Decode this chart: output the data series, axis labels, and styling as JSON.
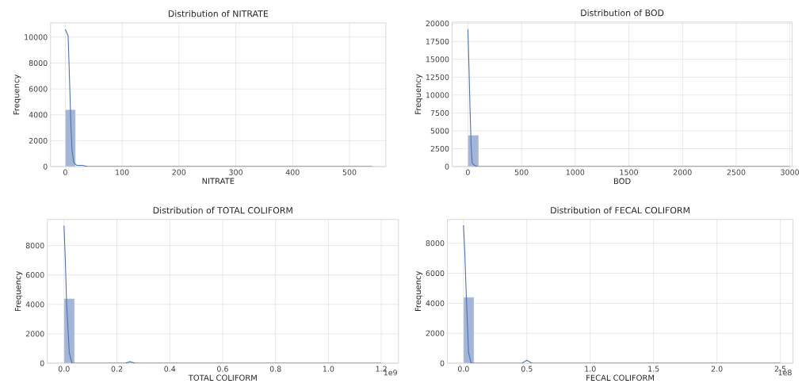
{
  "chart_data": [
    {
      "type": "histogram",
      "title": "Distribution of NITRATE",
      "xlabel": "NITRATE",
      "ylabel": "Frequency",
      "xlim": [
        -26,
        564
      ],
      "ylim": [
        0,
        11100
      ],
      "xticks": [
        0,
        100,
        200,
        300,
        400,
        500
      ],
      "yticks": [
        0,
        2000,
        4000,
        6000,
        8000,
        10000
      ],
      "grid": true,
      "series": [
        {
          "type": "histogram",
          "color": "#a4b6d8",
          "bins": [
            0,
            18,
            36,
            54,
            72,
            90,
            108,
            126,
            144,
            162,
            180,
            198,
            216,
            234,
            252,
            270,
            288,
            306,
            324,
            342,
            360,
            378,
            396,
            414,
            432,
            450,
            468,
            486,
            504,
            522,
            540
          ],
          "values": [
            4400,
            0,
            0,
            0,
            0,
            0,
            0,
            0,
            0,
            0,
            0,
            0,
            0,
            0,
            0,
            0,
            0,
            0,
            0,
            0,
            0,
            0,
            0,
            0,
            0,
            0,
            0,
            0,
            0,
            0
          ]
        },
        {
          "type": "line",
          "color": "#4c72b0",
          "x": [
            0,
            2,
            5,
            8,
            10,
            12,
            15,
            20,
            30,
            40,
            60,
            100,
            200,
            300,
            400,
            540
          ],
          "values": [
            10600,
            10400,
            10100,
            6000,
            3000,
            1200,
            300,
            100,
            100,
            0,
            0,
            0,
            0,
            0,
            0,
            0
          ]
        }
      ]
    },
    {
      "type": "histogram",
      "title": "Distribution of BOD",
      "xlabel": "BOD",
      "ylabel": "Frequency",
      "xlim": [
        -147,
        3022
      ],
      "ylim": [
        0,
        20200
      ],
      "xticks": [
        0,
        500,
        1000,
        1500,
        2000,
        2500,
        3000
      ],
      "yticks": [
        0,
        2500,
        5000,
        7500,
        10000,
        12500,
        15000,
        17500,
        20000
      ],
      "grid": true,
      "series": [
        {
          "type": "histogram",
          "color": "#a4b6d8",
          "bins": [
            0,
            100,
            200,
            300,
            400,
            500,
            600,
            700,
            800,
            900,
            1000,
            1100,
            1200,
            1300,
            1400,
            1500,
            1600,
            1700,
            1800,
            1900,
            2000,
            2100,
            2200,
            2300,
            2400,
            2500,
            2600,
            2700,
            2800,
            2900,
            3000
          ],
          "values": [
            4400,
            0,
            0,
            0,
            0,
            0,
            0,
            0,
            0,
            0,
            0,
            0,
            0,
            0,
            0,
            0,
            0,
            0,
            0,
            0,
            0,
            0,
            0,
            0,
            0,
            0,
            0,
            0,
            0,
            0
          ]
        },
        {
          "type": "line",
          "color": "#4c72b0",
          "x": [
            0,
            10,
            20,
            30,
            40,
            60,
            80,
            150,
            500,
            1000,
            2000,
            3000
          ],
          "values": [
            19200,
            14000,
            8000,
            3000,
            500,
            200,
            0,
            0,
            0,
            0,
            0,
            0
          ]
        }
      ]
    },
    {
      "type": "histogram",
      "title": "Distribution of TOTAL COLIFORM",
      "xlabel": "TOTAL COLIFORM",
      "ylabel": "Frequency",
      "xlim": [
        -0.063,
        1.265
      ],
      "ylim": [
        0,
        9770
      ],
      "xticks": [
        {
          "value": 0,
          "label": "0.0"
        },
        {
          "value": 0.2,
          "label": "0.2"
        },
        {
          "value": 0.4,
          "label": "0.4"
        },
        {
          "value": 0.6,
          "label": "0.6"
        },
        {
          "value": 0.8,
          "label": "0.8"
        },
        {
          "value": 1,
          "label": "1.0"
        },
        {
          "value": 1.2,
          "label": "1.2"
        }
      ],
      "yticks": [
        0,
        2000,
        4000,
        6000,
        8000
      ],
      "grid": true,
      "annotations": [
        "1e9"
      ],
      "series": [
        {
          "type": "histogram",
          "color": "#a4b6d8",
          "bins": [
            0,
            0.04,
            0.08,
            0.12,
            0.16,
            0.2,
            0.24,
            0.28,
            0.32,
            0.36,
            0.4,
            0.44,
            0.48,
            0.52,
            0.56,
            0.6,
            0.64,
            0.68,
            0.72,
            0.76,
            0.8,
            0.84,
            0.88,
            0.92,
            0.96,
            1,
            1.04,
            1.08,
            1.12,
            1.16,
            1.2
          ],
          "values": [
            4400,
            0,
            0,
            0,
            0,
            0,
            0,
            0,
            0,
            0,
            0,
            0,
            0,
            0,
            0,
            0,
            0,
            0,
            0,
            0,
            0,
            0,
            0,
            0,
            0,
            0,
            0,
            0,
            0,
            0
          ]
        },
        {
          "type": "line",
          "color": "#4c72b0",
          "x": [
            0,
            0.005,
            0.01,
            0.02,
            0.03,
            0.04,
            0.2,
            0.23,
            0.25,
            0.27,
            0.3,
            0.5,
            1.2
          ],
          "values": [
            9350,
            7000,
            4000,
            700,
            0,
            0,
            0,
            0,
            100,
            0,
            0,
            0,
            0
          ]
        }
      ]
    },
    {
      "type": "histogram",
      "title": "Distribution of FECAL COLIFORM",
      "xlabel": "FECAL COLIFORM",
      "ylabel": "Frequency",
      "xlim": [
        -0.127,
        2.6
      ],
      "ylim": [
        0,
        9580
      ],
      "xticks": [
        {
          "value": 0,
          "label": "0.0"
        },
        {
          "value": 0.5,
          "label": "0.5"
        },
        {
          "value": 1,
          "label": "1.0"
        },
        {
          "value": 1.5,
          "label": "1.5"
        },
        {
          "value": 2,
          "label": "2.0"
        },
        {
          "value": 2.5,
          "label": "2.5"
        }
      ],
      "yticks": [
        0,
        2000,
        4000,
        6000,
        8000
      ],
      "grid": true,
      "annotations": [
        "1e8"
      ],
      "series": [
        {
          "type": "histogram",
          "color": "#a4b6d8",
          "bins": [
            0,
            0.0833,
            0.1667,
            0.25,
            0.3333,
            0.4167,
            0.5,
            0.5833,
            0.6667,
            0.75,
            0.8333,
            0.9167,
            1,
            1.0833,
            1.1667,
            1.25,
            1.3333,
            1.4167,
            1.5,
            1.5833,
            1.6667,
            1.75,
            1.8333,
            1.9167,
            2,
            2.0833,
            2.1667,
            2.25,
            2.3333,
            2.4167,
            2.5
          ],
          "values": [
            4400,
            0,
            0,
            0,
            0,
            0,
            0,
            0,
            0,
            0,
            0,
            0,
            0,
            0,
            0,
            0,
            0,
            0,
            0,
            0,
            0,
            0,
            0,
            0,
            0,
            0,
            0,
            0,
            0,
            0
          ]
        },
        {
          "type": "line",
          "color": "#4c72b0",
          "x": [
            0,
            0.01,
            0.02,
            0.04,
            0.06,
            0.08,
            0.4,
            0.46,
            0.5,
            0.54,
            0.6,
            1.0,
            2.5
          ],
          "values": [
            9200,
            7500,
            5000,
            700,
            0,
            0,
            0,
            0,
            200,
            0,
            0,
            0,
            0
          ]
        }
      ]
    }
  ]
}
